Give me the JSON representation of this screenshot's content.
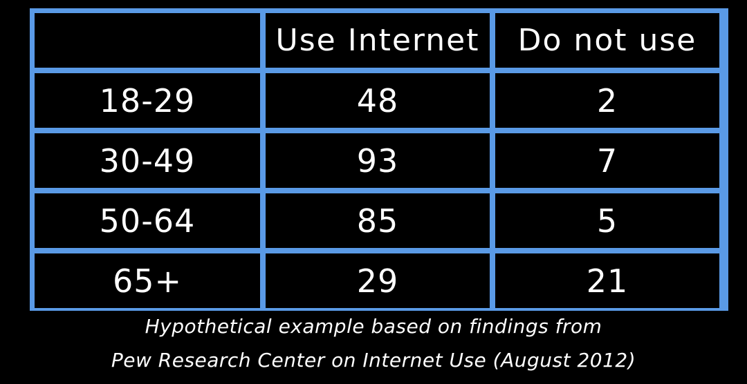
{
  "table": {
    "headers": [
      "",
      "Use Internet",
      "Do not use"
    ],
    "rows": [
      {
        "age": "18-29",
        "use": "48",
        "not_use": "2"
      },
      {
        "age": "30-49",
        "use": "93",
        "not_use": "7"
      },
      {
        "age": "50-64",
        "use": "85",
        "not_use": "5"
      },
      {
        "age": "65+",
        "use": "29",
        "not_use": "21"
      }
    ]
  },
  "caption": {
    "line1": "Hypothetical example based on findings from",
    "line2": "Pew Research Center on Internet Use (August 2012)"
  },
  "colors": {
    "background": "#000000",
    "grid_lines": "#5a9ae6",
    "text": "#ffffff"
  }
}
